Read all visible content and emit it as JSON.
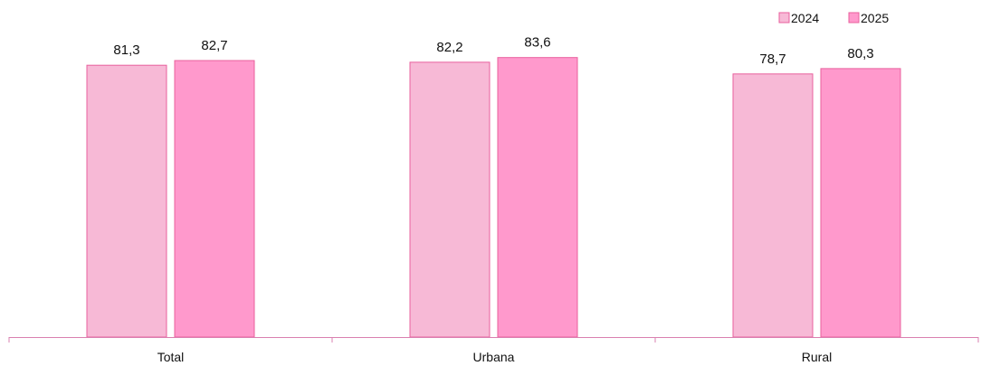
{
  "chart_data": {
    "type": "bar",
    "categories": [
      "Total",
      "Urbana",
      "Rural"
    ],
    "series": [
      {
        "name": "2024",
        "values": [
          81.3,
          82.2,
          78.7
        ],
        "color": "#f7b9d6",
        "stroke": "#e8609d"
      },
      {
        "name": "2025",
        "values": [
          82.7,
          83.6,
          80.3
        ],
        "color": "#ff99cc",
        "stroke": "#e8609d"
      }
    ],
    "value_labels": [
      [
        "81,3",
        "82,2",
        "78,7"
      ],
      [
        "82,7",
        "83,6",
        "80,3"
      ]
    ],
    "ylim": [
      0,
      100
    ],
    "grid": false,
    "legend_position": "top-right",
    "axis_color": "#d980b0"
  }
}
